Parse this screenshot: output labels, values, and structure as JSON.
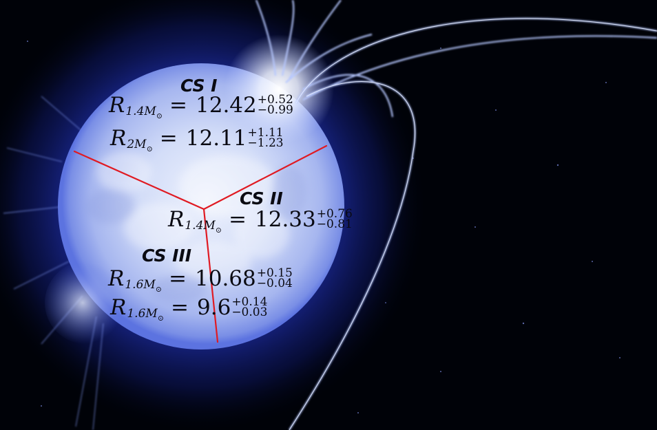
{
  "image": {
    "subject": "magnetar neutron star",
    "colors": {
      "star_core": "#dde6fb",
      "star_edge": "#5c73e0",
      "glow": "#2b3fd0",
      "field_lines": "#9fb6ff",
      "background": "#000208",
      "divider_lines": "#e01a22",
      "text": "#0a0a12"
    }
  },
  "regions": [
    {
      "id": "cs1",
      "heading": "CS I",
      "equations": [
        {
          "symbol": "R",
          "subscript": "1.4M",
          "subscript_mark": "⊙",
          "relation": "=",
          "value": "12.42",
          "upper": "+0.52",
          "lower": "−0.99"
        },
        {
          "symbol": "R",
          "subscript": "2M",
          "subscript_mark": "⊙",
          "relation": "=",
          "value": "12.11",
          "upper": "+1.11",
          "lower": "−1.23"
        }
      ]
    },
    {
      "id": "cs2",
      "heading": "CS II",
      "equations": [
        {
          "symbol": "R",
          "subscript": "1.4M",
          "subscript_mark": "⊙",
          "relation": "=",
          "value": "12.33",
          "upper": "+0.76",
          "lower": "−0.81"
        }
      ]
    },
    {
      "id": "cs3",
      "heading": "CS III",
      "equations": [
        {
          "symbol": "R",
          "subscript": "1.6M",
          "subscript_mark": "⊙",
          "relation": "=",
          "value": "10.68",
          "upper": "+0.15",
          "lower": "−0.04"
        },
        {
          "symbol": "R",
          "subscript": "1.6M",
          "subscript_mark": "⊙",
          "relation": "=",
          "value": "9.6",
          "upper": "+0.14",
          "lower": "−0.03"
        }
      ]
    }
  ]
}
